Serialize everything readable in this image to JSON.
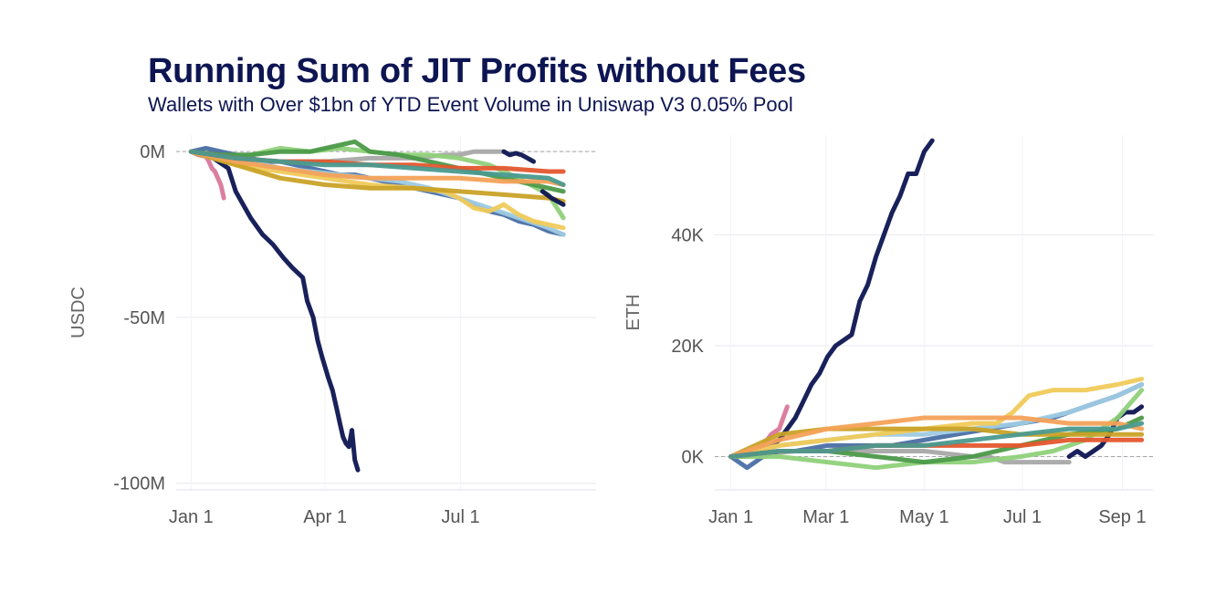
{
  "header": {
    "title": "Running Sum of JIT Profits without Fees",
    "subtitle": "Wallets with Over $1bn of YTD Event Volume in Uniswap V3 0.05% Pool"
  },
  "chart_data": [
    {
      "type": "line",
      "panel": "left",
      "ylabel": "USDC",
      "xlabel": "",
      "x_unit": "day of year",
      "xlim": [
        -10,
        272
      ],
      "ylim": [
        -102,
        5
      ],
      "x_ticks": [
        {
          "label": "Jan 1",
          "value": 0
        },
        {
          "label": "Apr 1",
          "value": 90
        },
        {
          "label": "Jul 1",
          "value": 181
        }
      ],
      "y_ticks": [
        {
          "label": "0M",
          "value": 0
        },
        {
          "label": "-50M",
          "value": -50
        },
        {
          "label": "-100M",
          "value": -100
        }
      ],
      "reference_line": 0,
      "series": [
        {
          "name": "navy",
          "color": "#0d1552",
          "width": 5,
          "x": [
            0,
            15,
            25,
            30,
            40,
            48,
            55,
            62,
            68,
            75,
            78,
            82,
            85,
            88,
            92,
            95,
            98,
            100,
            102,
            104,
            106,
            108,
            110,
            112
          ],
          "values": [
            0,
            -2,
            -5,
            -12,
            -20,
            -25,
            -28,
            -32,
            -35,
            -38,
            -45,
            -50,
            -57,
            -62,
            -68,
            -72,
            -78,
            -82,
            -86,
            -88,
            -89,
            -84,
            -93,
            -96
          ]
        },
        {
          "name": "pink",
          "color": "#d9779a",
          "width": 5,
          "x": [
            0,
            5,
            10,
            12,
            14,
            16,
            18,
            20,
            22
          ],
          "values": [
            0,
            -1,
            -1.5,
            -3,
            -5,
            -6,
            -8,
            -10,
            -14
          ]
        },
        {
          "name": "gray",
          "color": "#a8a8a8",
          "width": 5,
          "x": [
            0,
            30,
            60,
            90,
            120,
            150,
            170,
            180,
            190,
            200,
            210
          ],
          "values": [
            0,
            -2,
            -3,
            -3,
            -2,
            -2,
            -1,
            -1,
            0,
            0,
            0
          ]
        },
        {
          "name": "navy-late",
          "color": "#0d1552",
          "width": 5,
          "x": [
            210,
            214,
            218,
            222,
            226,
            230
          ],
          "values": [
            0,
            -1,
            -0.5,
            -1,
            -2,
            -3
          ]
        },
        {
          "name": "blue",
          "color": "#4a6fa5",
          "width": 5,
          "x": [
            0,
            10,
            20,
            30,
            40,
            50,
            60,
            70,
            80,
            90,
            100,
            110,
            120,
            130,
            140,
            150,
            160,
            170,
            180,
            190,
            200,
            210,
            220,
            230,
            240,
            250
          ],
          "values": [
            0,
            1,
            0,
            -1,
            -2,
            -3,
            -3,
            -4,
            -5,
            -6,
            -7,
            -7,
            -8,
            -9,
            -10,
            -11,
            -12,
            -13,
            -14,
            -16,
            -18,
            -19,
            -21,
            -22,
            -24,
            -25
          ]
        },
        {
          "name": "light-blue",
          "color": "#9ecae1",
          "width": 5,
          "x": [
            0,
            20,
            40,
            60,
            80,
            100,
            120,
            140,
            160,
            180,
            200,
            220,
            240,
            250
          ],
          "values": [
            0,
            -2,
            -3,
            -5,
            -6,
            -7,
            -8,
            -9,
            -11,
            -14,
            -17,
            -20,
            -23,
            -25
          ]
        },
        {
          "name": "yellow",
          "color": "#f0ca5a",
          "width": 5,
          "x": [
            0,
            30,
            60,
            90,
            120,
            150,
            170,
            180,
            190,
            200,
            210,
            220,
            230,
            240,
            250
          ],
          "values": [
            0,
            -4,
            -6,
            -8,
            -10,
            -11,
            -12,
            -14,
            -17,
            -18,
            -16,
            -19,
            -21,
            -22,
            -23
          ]
        },
        {
          "name": "light-green",
          "color": "#8fd17a",
          "width": 5,
          "x": [
            0,
            20,
            40,
            60,
            80,
            100,
            120,
            140,
            160,
            180,
            200,
            220,
            240,
            250
          ],
          "values": [
            0,
            -2,
            -1,
            1,
            0,
            1,
            0,
            -1,
            -1,
            -2,
            -4,
            -8,
            -13,
            -20
          ]
        },
        {
          "name": "green",
          "color": "#4c9a4a",
          "width": 5,
          "x": [
            0,
            20,
            40,
            60,
            80,
            100,
            110,
            120,
            140,
            160,
            180,
            200,
            220,
            240,
            250
          ],
          "values": [
            0,
            -1,
            -1,
            0,
            0,
            2,
            3,
            0,
            -1,
            -3,
            -5,
            -7,
            -9,
            -11,
            -12
          ]
        },
        {
          "name": "olive",
          "color": "#c9a227",
          "width": 5,
          "x": [
            0,
            30,
            60,
            90,
            120,
            150,
            180,
            210,
            240,
            250
          ],
          "values": [
            0,
            -4,
            -8,
            -10,
            -11,
            -11,
            -12,
            -13,
            -14,
            -15
          ]
        },
        {
          "name": "orange",
          "color": "#f4a259",
          "width": 5,
          "x": [
            0,
            30,
            60,
            90,
            120,
            150,
            180,
            210,
            240,
            250
          ],
          "values": [
            0,
            -3,
            -5,
            -7,
            -8,
            -8,
            -8,
            -9,
            -9,
            -10
          ]
        },
        {
          "name": "red",
          "color": "#e4572e",
          "width": 5,
          "x": [
            0,
            30,
            60,
            90,
            120,
            150,
            180,
            210,
            240,
            250
          ],
          "values": [
            0,
            -2,
            -3,
            -3,
            -4,
            -4,
            -5,
            -5,
            -6,
            -6
          ]
        },
        {
          "name": "teal",
          "color": "#4a9a8f",
          "width": 5,
          "x": [
            0,
            30,
            60,
            90,
            120,
            150,
            180,
            210,
            240,
            250
          ],
          "values": [
            0,
            -2,
            -3,
            -4,
            -4,
            -5,
            -6,
            -7,
            -8,
            -10
          ]
        },
        {
          "name": "navy-end",
          "color": "#0d1552",
          "width": 5,
          "x": [
            236,
            242,
            246,
            250
          ],
          "values": [
            -12,
            -14,
            -15,
            -16
          ]
        }
      ]
    },
    {
      "type": "line",
      "panel": "right",
      "ylabel": "ETH",
      "xlabel": "",
      "x_unit": "day of year",
      "xlim": [
        -10,
        262
      ],
      "ylim": [
        -6,
        58
      ],
      "x_ticks": [
        {
          "label": "Jan 1",
          "value": 0
        },
        {
          "label": "Mar 1",
          "value": 59
        },
        {
          "label": "May 1",
          "value": 120
        },
        {
          "label": "Jul 1",
          "value": 181
        },
        {
          "label": "Sep 1",
          "value": 243
        }
      ],
      "y_ticks": [
        {
          "label": "0K",
          "value": 0
        },
        {
          "label": "20K",
          "value": 20
        },
        {
          "label": "40K",
          "value": 40
        }
      ],
      "reference_line": 0,
      "series": [
        {
          "name": "navy",
          "color": "#0d1552",
          "width": 5,
          "x": [
            0,
            10,
            20,
            30,
            35,
            40,
            45,
            50,
            55,
            60,
            65,
            70,
            75,
            80,
            85,
            90,
            95,
            100,
            105,
            110,
            115,
            120,
            125
          ],
          "values": [
            0,
            0,
            1,
            3,
            5,
            7,
            10,
            13,
            15,
            18,
            20,
            21,
            22,
            28,
            31,
            36,
            40,
            44,
            47,
            51,
            51,
            55,
            57
          ]
        },
        {
          "name": "pink",
          "color": "#d9779a",
          "width": 5,
          "x": [
            0,
            10,
            20,
            25,
            30,
            35
          ],
          "values": [
            0,
            1,
            2,
            4,
            5,
            9
          ]
        },
        {
          "name": "gray",
          "color": "#a8a8a8",
          "width": 5,
          "x": [
            0,
            40,
            80,
            120,
            150,
            160,
            170,
            180,
            190,
            200,
            210
          ],
          "values": [
            0,
            1,
            1,
            1,
            0,
            0,
            -1,
            -1,
            -1,
            -1,
            -1
          ]
        },
        {
          "name": "navy-late",
          "color": "#0d1552",
          "width": 5,
          "x": [
            210,
            215,
            220,
            225,
            230,
            235,
            240,
            245,
            250,
            255
          ],
          "values": [
            0,
            1,
            0,
            1,
            2,
            4,
            7,
            8,
            8,
            9
          ]
        },
        {
          "name": "blue",
          "color": "#4a6fa5",
          "width": 5,
          "x": [
            0,
            10,
            20,
            30,
            40,
            60,
            80,
            100,
            120,
            140,
            160,
            180,
            200,
            220,
            240,
            255
          ],
          "values": [
            0,
            -2,
            0,
            1,
            1,
            2,
            2,
            2,
            3,
            4,
            5,
            6,
            7,
            9,
            11,
            13
          ]
        },
        {
          "name": "light-blue",
          "color": "#9ecae1",
          "width": 5,
          "x": [
            0,
            30,
            60,
            90,
            120,
            150,
            180,
            210,
            240,
            255
          ],
          "values": [
            0,
            2,
            3,
            4,
            4,
            5,
            6,
            8,
            11,
            13
          ]
        },
        {
          "name": "yellow",
          "color": "#f0ca5a",
          "width": 5,
          "x": [
            0,
            30,
            60,
            90,
            120,
            150,
            165,
            175,
            185,
            200,
            220,
            240,
            255
          ],
          "values": [
            0,
            2,
            3,
            4,
            5,
            6,
            6,
            8,
            11,
            12,
            12,
            13,
            14
          ]
        },
        {
          "name": "light-green",
          "color": "#8fd17a",
          "width": 5,
          "x": [
            0,
            30,
            60,
            90,
            120,
            150,
            180,
            200,
            220,
            240,
            255
          ],
          "values": [
            0,
            0,
            -1,
            -2,
            -1,
            -1,
            0,
            1,
            3,
            7,
            12
          ]
        },
        {
          "name": "green",
          "color": "#4c9a4a",
          "width": 5,
          "x": [
            0,
            30,
            60,
            90,
            120,
            150,
            180,
            210,
            240,
            255
          ],
          "values": [
            0,
            1,
            1,
            0,
            -1,
            0,
            2,
            4,
            5,
            7
          ]
        },
        {
          "name": "olive",
          "color": "#c9a227",
          "width": 5,
          "x": [
            0,
            30,
            60,
            90,
            120,
            150,
            180,
            210,
            240,
            255
          ],
          "values": [
            0,
            4,
            5,
            5,
            5,
            5,
            4,
            4,
            4,
            4
          ]
        },
        {
          "name": "orange",
          "color": "#f4a259",
          "width": 5,
          "x": [
            0,
            30,
            60,
            90,
            120,
            150,
            180,
            210,
            240,
            255
          ],
          "values": [
            0,
            3,
            5,
            6,
            7,
            7,
            7,
            6,
            6,
            5
          ]
        },
        {
          "name": "red",
          "color": "#e4572e",
          "width": 5,
          "x": [
            0,
            30,
            60,
            90,
            120,
            150,
            180,
            210,
            240,
            255
          ],
          "values": [
            0,
            1,
            1,
            2,
            2,
            2,
            2,
            3,
            3,
            3
          ]
        },
        {
          "name": "teal",
          "color": "#4a9a8f",
          "width": 5,
          "x": [
            0,
            30,
            60,
            90,
            120,
            150,
            180,
            210,
            240,
            255
          ],
          "values": [
            0,
            1,
            1,
            2,
            2,
            3,
            4,
            5,
            5,
            6
          ]
        }
      ]
    }
  ]
}
